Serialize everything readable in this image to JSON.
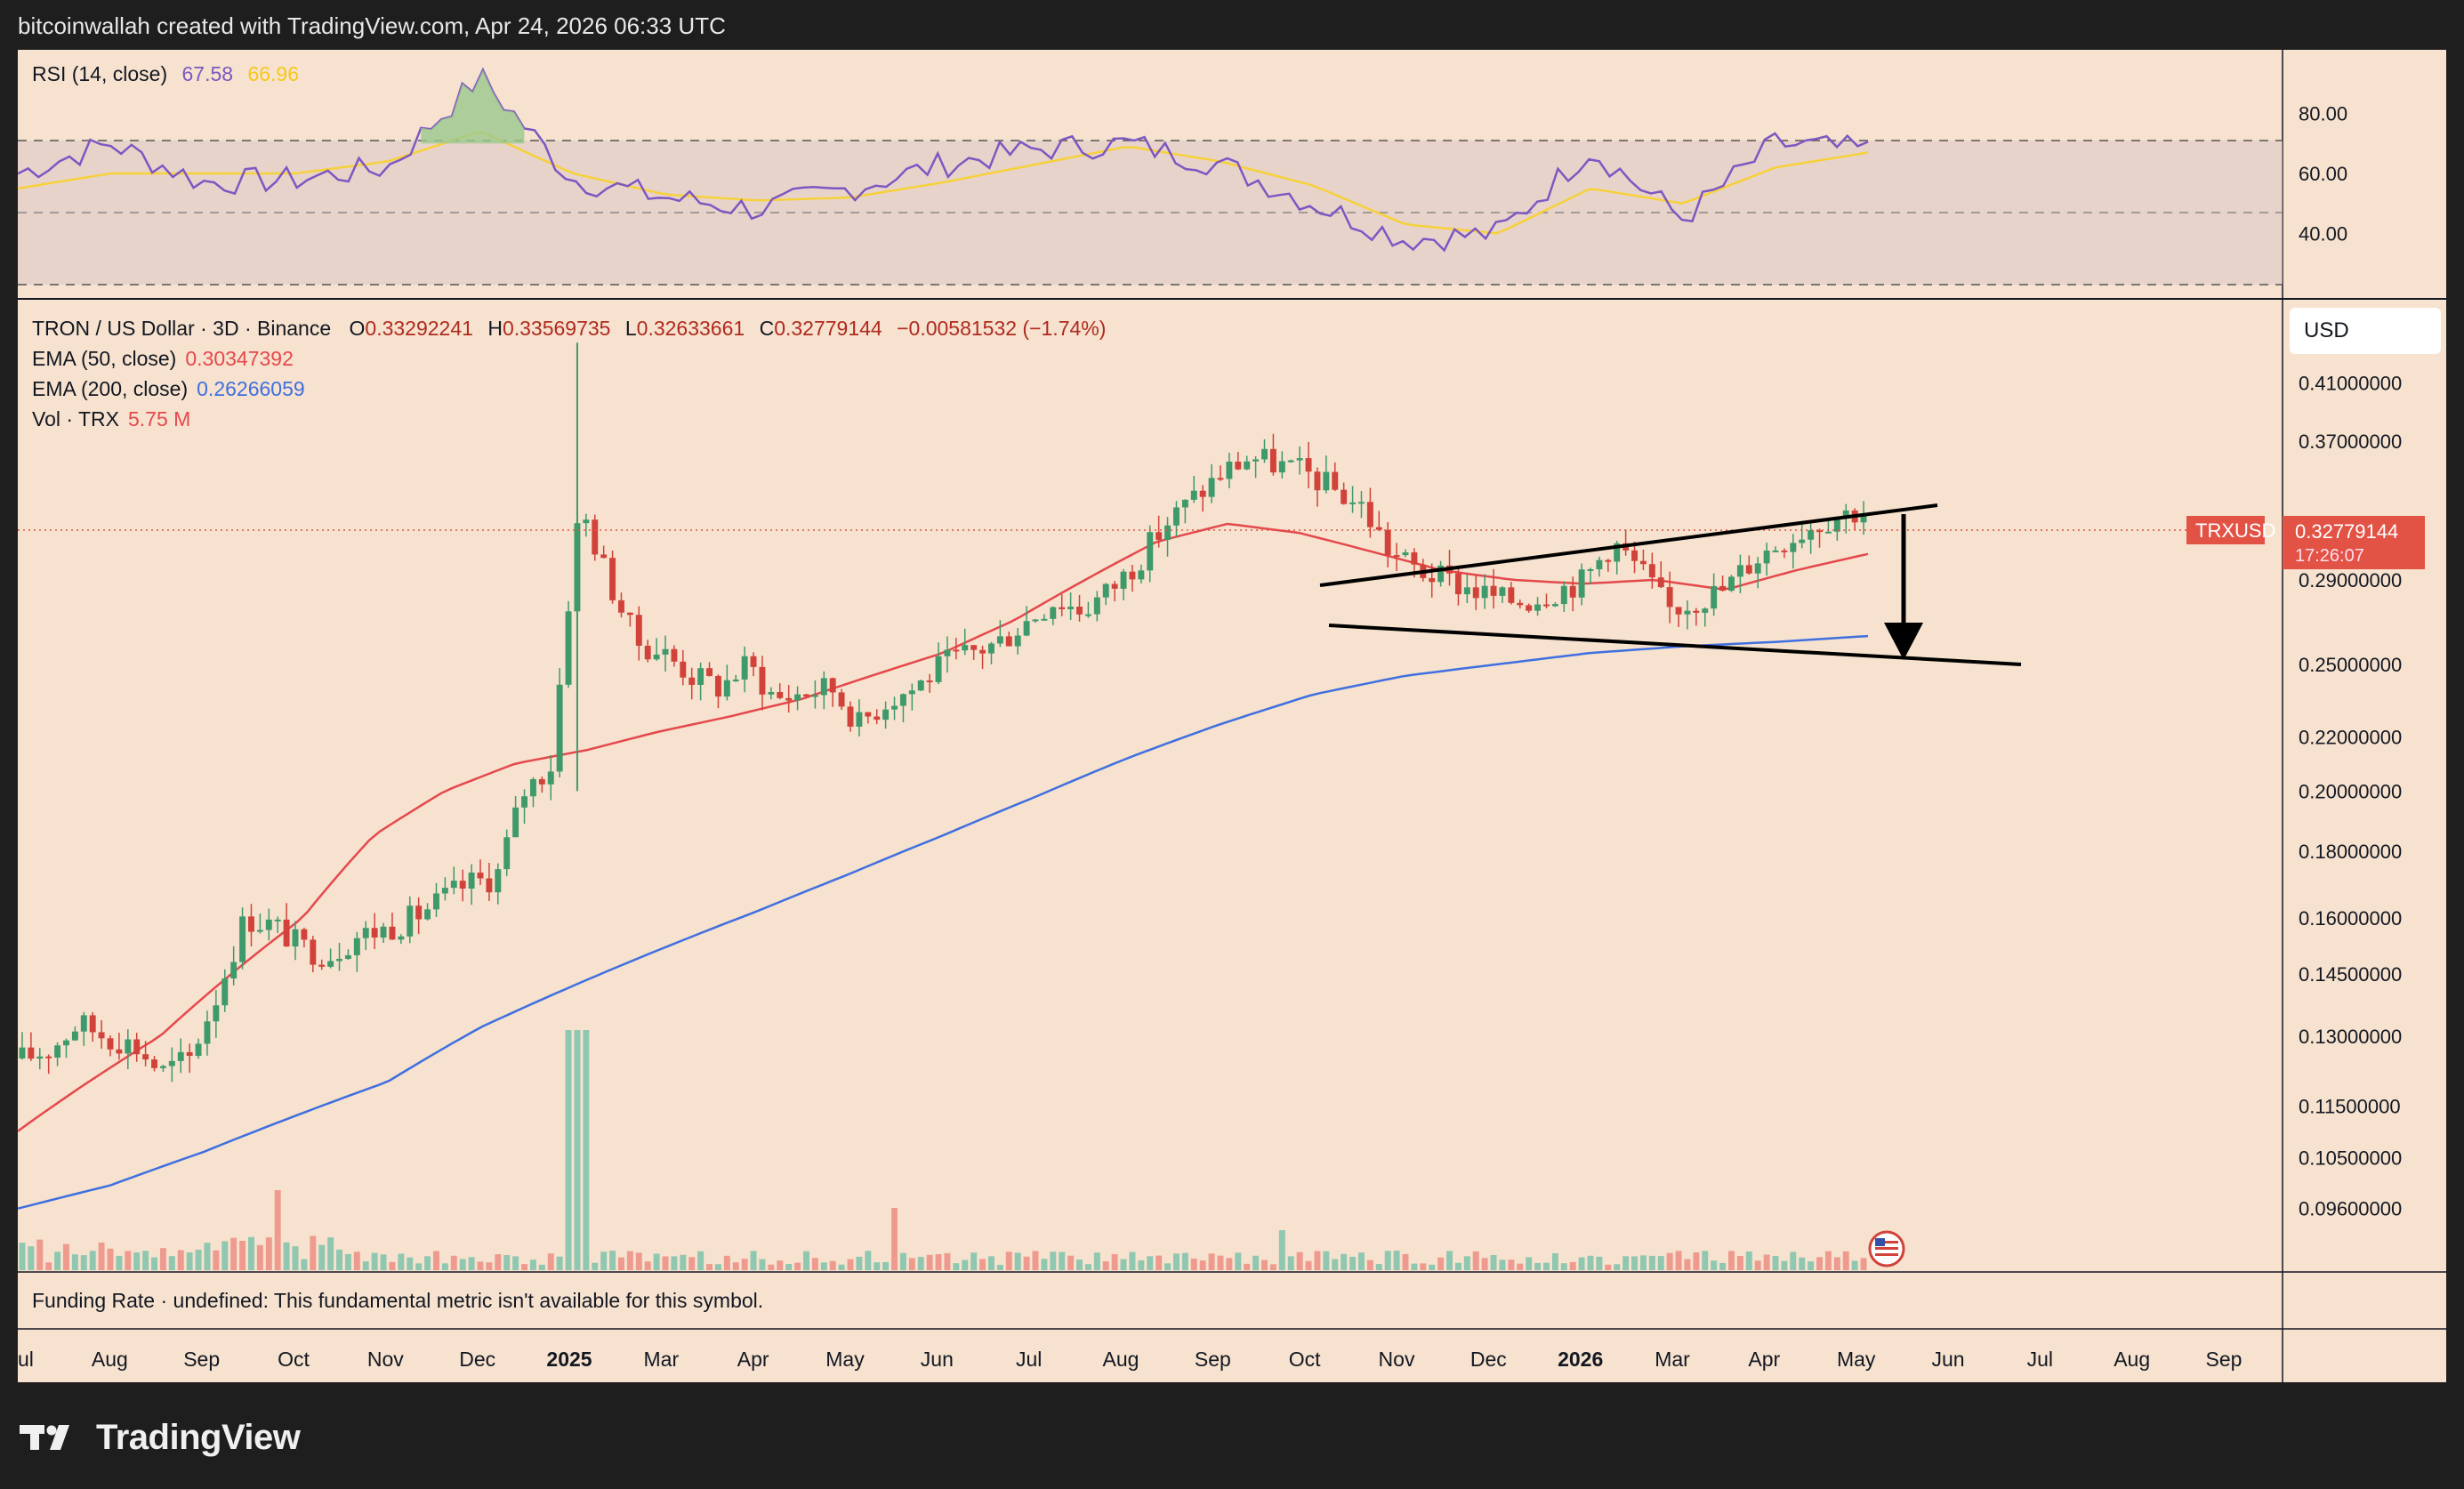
{
  "header": {
    "credit": "bitcoinwallah created with TradingView.com, Apr 24, 2026 06:33 UTC"
  },
  "brand": {
    "name": "TradingView"
  },
  "rsi_legend": {
    "label": "RSI (14, close)",
    "value": "67.58",
    "ma": "66.96",
    "color": "#7e57c2",
    "ma_color": "#f6d13a"
  },
  "main_legend": {
    "symbol": "TRON / US Dollar · 3D · Binance",
    "o_label": "O",
    "o": "0.33292241",
    "h_label": "H",
    "h": "0.33569735",
    "l_label": "L",
    "l": "0.32633661",
    "c_label": "C",
    "c": "0.32779144",
    "change": "−0.00581532 (−1.74%)",
    "ema50_label": "EMA (50, close)",
    "ema50": "0.30347392",
    "ema200_label": "EMA (200, close)",
    "ema200": "0.26266059",
    "vol_label": "Vol · TRX",
    "vol": "5.75 M"
  },
  "funding": {
    "text": "Funding Rate · undefined: This fundamental metric isn't available for this symbol."
  },
  "currency_button": "USD",
  "price_tag": {
    "symbol": "TRXUSD",
    "price": "0.32779144",
    "countdown": "17:26:07",
    "color": "#e25346"
  },
  "colors": {
    "up": "#3f9a6b",
    "down": "#d1433a",
    "ema50": "#e5484d",
    "ema200": "#3f6fe0",
    "background": "#f6e2ce"
  },
  "chart_data": [
    {
      "type": "line",
      "title": "RSI (14, close)",
      "ylim": [
        20,
        100
      ],
      "y_ticks": [
        "80.00",
        "60.00",
        "40.00"
      ],
      "bands": [
        70,
        50,
        30
      ],
      "series": [
        {
          "name": "RSI",
          "x": [
            "Jul",
            "Aug",
            "Sep",
            "Oct",
            "Nov",
            "Dec",
            "2025",
            "Mar",
            "Apr",
            "May",
            "Jun",
            "Jul",
            "Aug",
            "Sep",
            "Oct",
            "Nov",
            "Dec",
            "2026",
            "Mar",
            "Apr",
            "Apr 24"
          ],
          "values": [
            60,
            70,
            57,
            58,
            62,
            92,
            58,
            52,
            48,
            55,
            63,
            68,
            70,
            63,
            50,
            38,
            40,
            68,
            45,
            70,
            67.58
          ]
        },
        {
          "name": "MA",
          "x": [
            "Jul",
            "Aug",
            "Sep",
            "Oct",
            "Nov",
            "Dec",
            "2025",
            "Mar",
            "Apr",
            "May",
            "Jun",
            "Jul",
            "Aug",
            "Sep",
            "Oct",
            "Nov",
            "Dec",
            "2026",
            "Mar",
            "Apr",
            "Apr 24"
          ],
          "values": [
            55,
            60,
            60,
            60,
            64,
            74,
            60,
            53,
            51,
            52,
            57,
            63,
            69,
            64,
            56,
            43,
            40,
            55,
            50,
            62,
            66.96
          ]
        }
      ]
    },
    {
      "type": "candlestick",
      "title": "TRON / US Dollar · 3D · Binance",
      "scale": "log",
      "ylim": [
        0.09,
        0.43
      ],
      "x_ticks": [
        "ul",
        "Aug",
        "Sep",
        "Oct",
        "Nov",
        "Dec",
        "2025",
        "Mar",
        "Apr",
        "May",
        "Jun",
        "Jul",
        "Aug",
        "Sep",
        "Oct",
        "Nov",
        "Dec",
        "2026",
        "Mar",
        "Apr",
        "May",
        "Jun",
        "Jul",
        "Aug",
        "Sep"
      ],
      "y_ticks": [
        "0.41000000",
        "0.37000000",
        "0.29000000",
        "0.25000000",
        "0.22000000",
        "0.20000000",
        "0.18000000",
        "0.16000000",
        "0.14500000",
        "0.13000000",
        "0.11500000",
        "0.10500000",
        "0.09600000"
      ],
      "close": [
        0.125,
        0.127,
        0.133,
        0.13,
        0.128,
        0.122,
        0.125,
        0.14,
        0.16,
        0.158,
        0.152,
        0.15,
        0.155,
        0.157,
        0.16,
        0.165,
        0.17,
        0.172,
        0.2,
        0.21,
        0.33,
        0.29,
        0.26,
        0.255,
        0.245,
        0.24,
        0.25,
        0.235,
        0.238,
        0.24,
        0.225,
        0.235,
        0.24,
        0.25,
        0.255,
        0.26,
        0.27,
        0.28,
        0.275,
        0.285,
        0.3,
        0.32,
        0.335,
        0.35,
        0.36,
        0.355,
        0.35,
        0.34,
        0.33,
        0.305,
        0.295,
        0.29,
        0.285,
        0.28,
        0.28,
        0.285,
        0.29,
        0.31,
        0.295,
        0.275,
        0.28,
        0.285,
        0.3,
        0.31,
        0.318,
        0.325,
        0.328
      ],
      "ema50": [
        0.11,
        0.12,
        0.13,
        0.145,
        0.16,
        0.185,
        0.2,
        0.21,
        0.215,
        0.222,
        0.228,
        0.235,
        0.245,
        0.255,
        0.27,
        0.29,
        0.31,
        0.32,
        0.315,
        0.305,
        0.295,
        0.29,
        0.288,
        0.29,
        0.285,
        0.295,
        0.3035
      ],
      "ema200": [
        0.096,
        0.1,
        0.106,
        0.113,
        0.12,
        0.132,
        0.142,
        0.152,
        0.162,
        0.173,
        0.185,
        0.198,
        0.212,
        0.225,
        0.237,
        0.245,
        0.25,
        0.255,
        0.258,
        0.26,
        0.2627
      ],
      "volume_peak_month": "Dec",
      "annotations": [
        "broadening wedge upper line",
        "broadening wedge lower line",
        "down arrow"
      ],
      "last_price": 0.32779144
    }
  ]
}
